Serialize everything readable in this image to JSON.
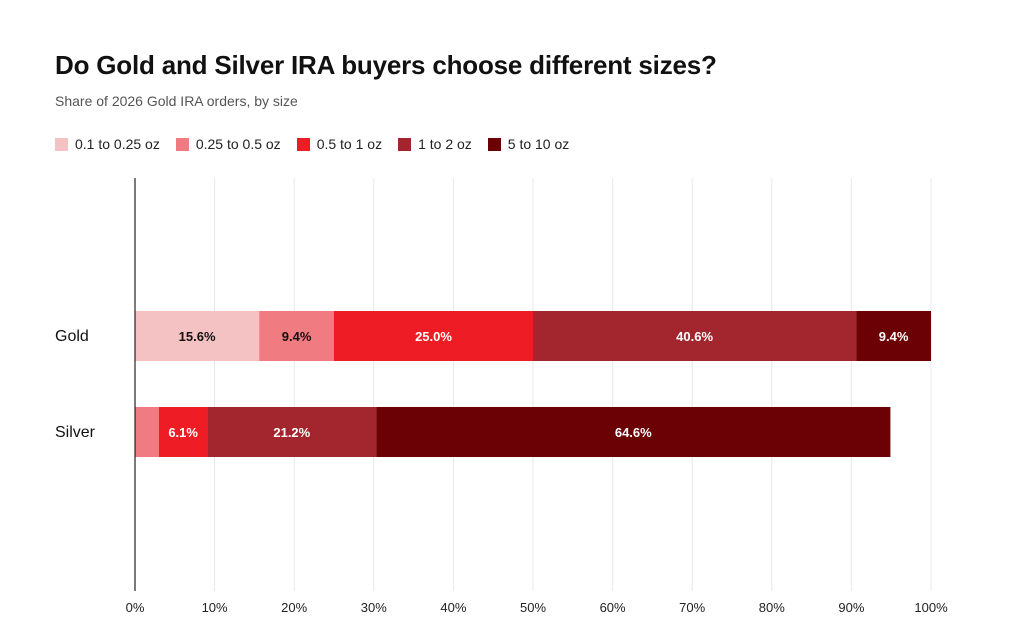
{
  "chart_data": {
    "type": "bar",
    "orientation": "horizontal",
    "stacked": true,
    "title": "Do Gold and Silver IRA buyers choose different sizes?",
    "subtitle": "Share of 2026 Gold IRA orders, by size",
    "categories": [
      "Gold",
      "Silver"
    ],
    "series": [
      {
        "name": "0.1 to 0.25 oz",
        "color": "#f5c2c4",
        "label_color": "#111111",
        "values": [
          15.6,
          0
        ],
        "labels": [
          "15.6%",
          ""
        ]
      },
      {
        "name": "0.25 to 0.5 oz",
        "color": "#f07b80",
        "label_color": "#111111",
        "values": [
          9.4,
          3.0
        ],
        "labels": [
          "9.4%",
          ""
        ]
      },
      {
        "name": "0.5 to 1 oz",
        "color": "#ee1c25",
        "label_color": "#ffffff",
        "values": [
          25.0,
          6.1
        ],
        "labels": [
          "25.0%",
          "6.1%"
        ]
      },
      {
        "name": "1 to 2 oz",
        "color": "#a3262e",
        "label_color": "#ffffff",
        "values": [
          40.6,
          21.2
        ],
        "labels": [
          "40.6%",
          "21.2%"
        ]
      },
      {
        "name": "5 to 10 oz",
        "color": "#6b0005",
        "label_color": "#ffffff",
        "values": [
          9.4,
          64.6
        ],
        "labels": [
          "9.4%",
          "64.6%"
        ]
      }
    ],
    "xlim": [
      0,
      100
    ],
    "x_ticks": [
      0,
      10,
      20,
      30,
      40,
      50,
      60,
      70,
      80,
      90,
      100
    ],
    "x_tick_labels": [
      "0%",
      "10%",
      "20%",
      "30%",
      "40%",
      "50%",
      "60%",
      "70%",
      "80%",
      "90%",
      "100%"
    ],
    "grid": "vertical",
    "legend_position": "top-left"
  }
}
